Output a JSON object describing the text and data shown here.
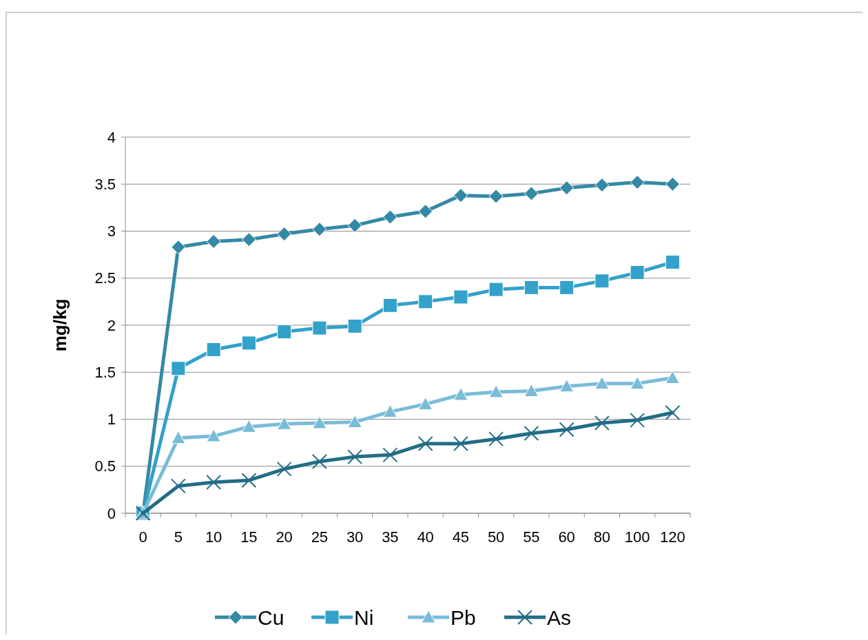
{
  "chart_data": {
    "type": "line",
    "ylabel": "mg/kg",
    "categories": [
      "0",
      "5",
      "10",
      "15",
      "20",
      "25",
      "30",
      "35",
      "40",
      "45",
      "50",
      "55",
      "60",
      "80",
      "100",
      "120"
    ],
    "series": [
      {
        "name": "Cu",
        "color": "#3489a4",
        "marker": "diamond",
        "values": [
          0,
          2.83,
          2.89,
          2.91,
          2.97,
          3.02,
          3.06,
          3.15,
          3.21,
          3.38,
          3.37,
          3.4,
          3.46,
          3.49,
          3.52,
          3.5
        ]
      },
      {
        "name": "Ni",
        "color": "#33a1c9",
        "marker": "square",
        "values": [
          0,
          1.54,
          1.74,
          1.81,
          1.93,
          1.97,
          1.99,
          2.21,
          2.25,
          2.3,
          2.38,
          2.4,
          2.4,
          2.47,
          2.56,
          2.67
        ]
      },
      {
        "name": "Pb",
        "color": "#79bcd8",
        "marker": "triangle",
        "values": [
          0,
          0.8,
          0.82,
          0.92,
          0.95,
          0.96,
          0.97,
          1.08,
          1.16,
          1.26,
          1.29,
          1.3,
          1.35,
          1.38,
          1.38,
          1.44
        ]
      },
      {
        "name": "As",
        "color": "#226d86",
        "marker": "cross",
        "values": [
          0,
          0.29,
          0.33,
          0.35,
          0.47,
          0.55,
          0.6,
          0.62,
          0.74,
          0.74,
          0.79,
          0.85,
          0.89,
          0.96,
          0.99,
          1.07
        ]
      }
    ],
    "ylim": [
      0,
      4
    ],
    "yticks": [
      0,
      0.5,
      1,
      1.5,
      2,
      2.5,
      3,
      3.5,
      4
    ],
    "grid": "y",
    "legend": "bottom",
    "line_style": "solid"
  }
}
